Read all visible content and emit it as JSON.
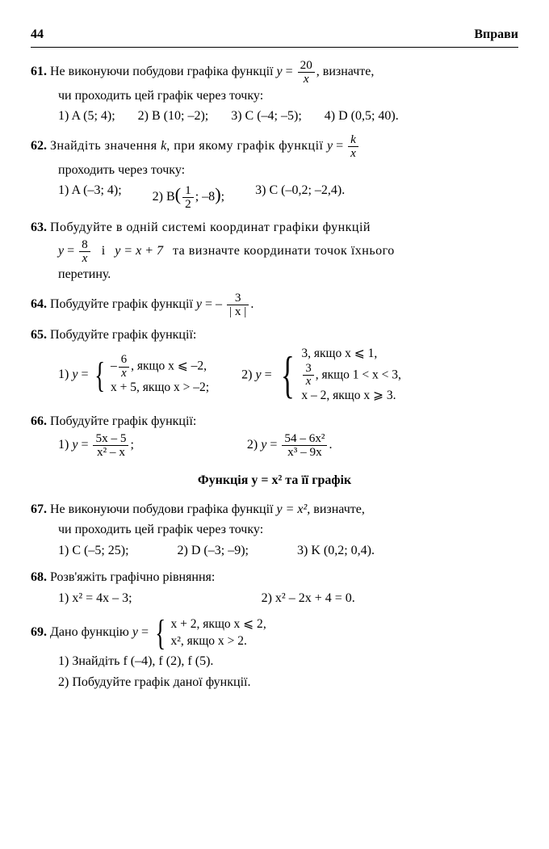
{
  "page_number": "44",
  "section_title": "Вправи",
  "heading_middle": "Функція y = x²  та  її графік",
  "p61": {
    "num": "61.",
    "text_a": "Не виконуючи побудови графіка функції ",
    "func_y": "y",
    "func_num": "20",
    "func_den": "x",
    "text_b": ", визначте,",
    "text_c": "чи проходить цей графік через точку:",
    "opt1": "1) A (5; 4);",
    "opt2": "2) B (10; –2);",
    "opt3": "3) C (–4; –5);",
    "opt4": "4) D (0,5; 40)."
  },
  "p62": {
    "num": "62.",
    "text_a": "Знайдіть значення ",
    "k": "k",
    "text_b": ", при якому графік функції ",
    "func_num": "k",
    "func_den": "x",
    "text_c": "проходить через точку:",
    "opt1": "1) A (–3; 4);",
    "opt2_a": "2)  B",
    "opt2_num": "1",
    "opt2_den": "2",
    "opt2_b": "; –8",
    "opt2_c": ";",
    "opt3": "3) C (–0,2; –2,4)."
  },
  "p63": {
    "num": "63.",
    "text_a": "Побудуйте в одній системі координат графіки функцій",
    "f1_num": "8",
    "f1_den": "x",
    "text_b": "і",
    "f2": "y = x + 7",
    "text_c": "та визначте координати точок їхнього",
    "text_d": "перетину."
  },
  "p64": {
    "num": "64.",
    "text_a": "Побудуйте графік функції ",
    "f_num": "3",
    "f_den": "| x |"
  },
  "p65": {
    "num": "65.",
    "text_a": "Побудуйте графік функції:",
    "c1_l1a": "–",
    "c1_l1_num": "6",
    "c1_l1_den": "x",
    "c1_l1b": ",  якщо x ⩽ –2,",
    "c1_l2": "x + 5, якщо x > –2;",
    "c2_l1": "3,       якщо x ⩽ 1,",
    "c2_l2_num": "3",
    "c2_l2_den": "x",
    "c2_l2b": ",      якщо  1 < x < 3,",
    "c2_l3": "x – 2, якщо x ⩾ 3."
  },
  "p66": {
    "num": "66.",
    "text_a": "Побудуйте графік функції:",
    "f1_num": "5x – 5",
    "f1_den": "x² – x",
    "f2_num": "54 – 6x²",
    "f2_den": "x³ – 9x"
  },
  "p67": {
    "num": "67.",
    "text_a": "Не виконуючи побудови графіка функції ",
    "func": "y = x²",
    "text_b": ", визначте,",
    "text_c": "чи проходить цей графік через точку:",
    "opt1": "1) C (–5; 25);",
    "opt2": "2) D (–3; –9);",
    "opt3": "3) K (0,2; 0,4)."
  },
  "p68": {
    "num": "68.",
    "text_a": "Розв'яжіть графічно рівняння:",
    "opt1": "1)  x² = 4x – 3;",
    "opt2": "2)  x² – 2x + 4 = 0."
  },
  "p69": {
    "num": "69.",
    "text_a": "Дано функцію ",
    "c_l1": "x + 2, якщо x ⩽ 2,",
    "c_l2": "x²,     якщо x > 2.",
    "sub1": "1) Знайдіть f (–4), f (2), f (5).",
    "sub2": "2) Побудуйте графік даної функції."
  }
}
